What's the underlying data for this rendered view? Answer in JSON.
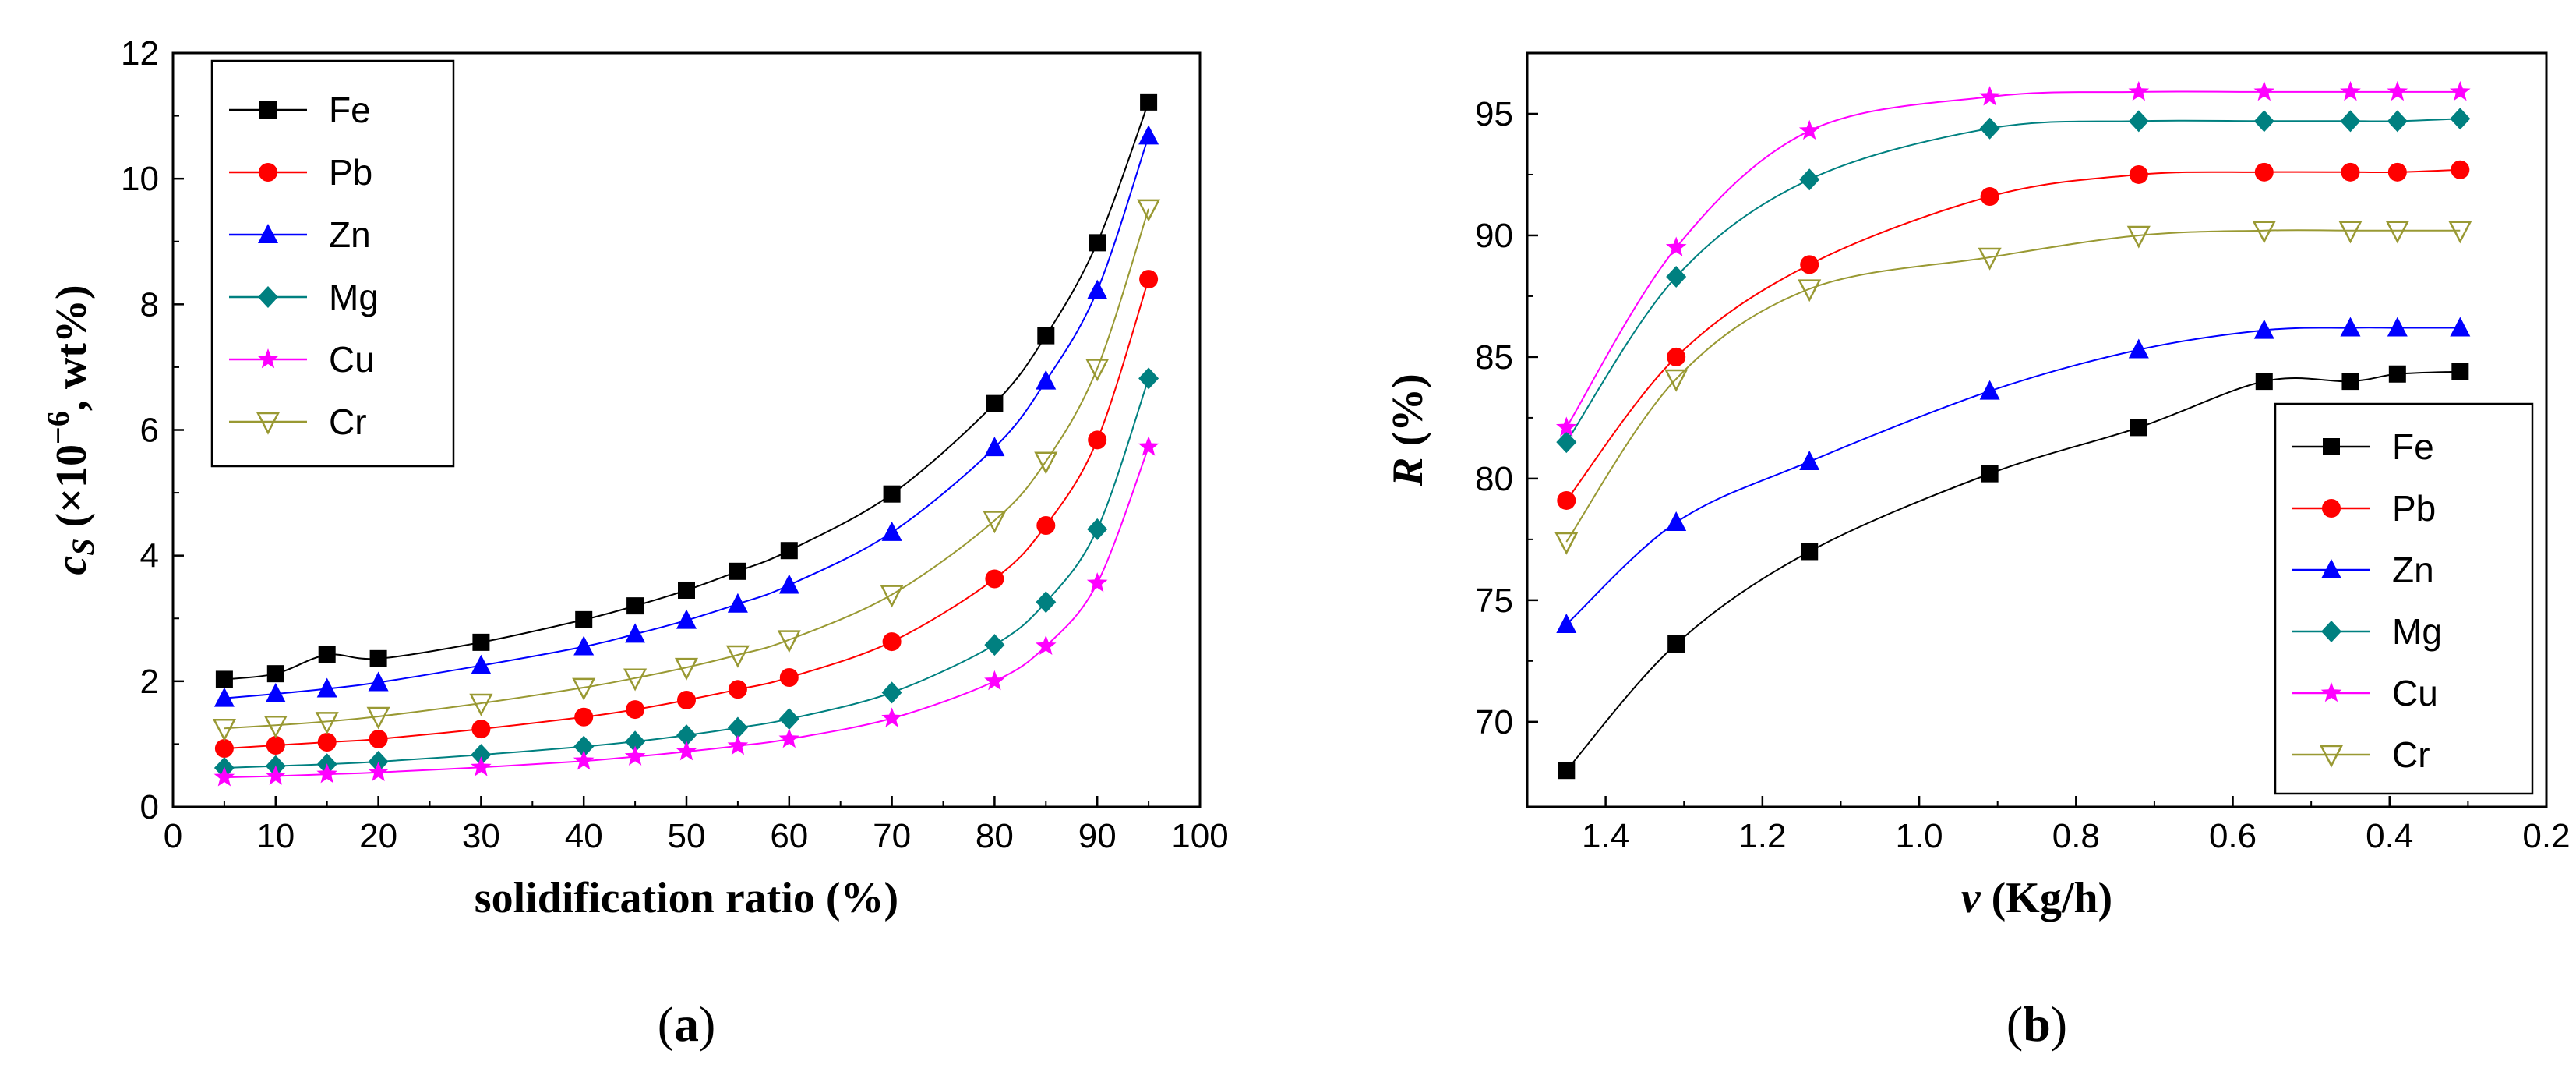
{
  "chart_data": [
    {
      "type": "line",
      "panel_label": "(a)",
      "xlabel": "solidification ratio (%)",
      "ylabel": {
        "prefix": "c",
        "sub": "S",
        "open": " (×10",
        "sup": "−6",
        "close": ", wt%)"
      },
      "xlim": [
        0,
        100
      ],
      "ylim": [
        0,
        12
      ],
      "xticks": [
        "0",
        "10",
        "20",
        "30",
        "40",
        "50",
        "60",
        "70",
        "80",
        "90",
        "100"
      ],
      "yticks": [
        "0",
        "2",
        "4",
        "6",
        "8",
        "10",
        "12"
      ],
      "legend_position": "top-left",
      "x": [
        5,
        10,
        15,
        20,
        30,
        40,
        45,
        50,
        55,
        60,
        70,
        80,
        85,
        90,
        95
      ],
      "series": [
        {
          "name": "Fe",
          "marker": "square",
          "color": "#000000",
          "values": [
            2.03,
            2.12,
            2.42,
            2.36,
            2.62,
            2.98,
            3.2,
            3.45,
            3.75,
            4.08,
            4.98,
            6.42,
            7.5,
            8.98,
            11.22
          ]
        },
        {
          "name": "Pb",
          "marker": "circle",
          "color": "#ff0000",
          "values": [
            0.93,
            0.98,
            1.03,
            1.08,
            1.24,
            1.43,
            1.55,
            1.7,
            1.87,
            2.06,
            2.63,
            3.63,
            4.48,
            5.84,
            8.4
          ]
        },
        {
          "name": "Zn",
          "marker": "triangle",
          "color": "#0000ff",
          "values": [
            1.73,
            1.8,
            1.88,
            1.98,
            2.25,
            2.55,
            2.75,
            2.97,
            3.23,
            3.53,
            4.37,
            5.72,
            6.78,
            8.22,
            10.68
          ]
        },
        {
          "name": "Mg",
          "marker": "diamond",
          "color": "#008080",
          "values": [
            0.62,
            0.65,
            0.68,
            0.72,
            0.83,
            0.96,
            1.04,
            1.14,
            1.26,
            1.4,
            1.82,
            2.58,
            3.26,
            4.42,
            6.82
          ]
        },
        {
          "name": "Cu",
          "marker": "star",
          "color": "#ff00ff",
          "values": [
            0.47,
            0.49,
            0.52,
            0.55,
            0.63,
            0.73,
            0.8,
            0.88,
            0.97,
            1.08,
            1.41,
            2.0,
            2.56,
            3.56,
            5.73
          ]
        },
        {
          "name": "Cr",
          "marker": "tri-down",
          "color": "#999933",
          "values": [
            1.25,
            1.3,
            1.36,
            1.44,
            1.65,
            1.9,
            2.05,
            2.22,
            2.42,
            2.66,
            3.38,
            4.56,
            5.5,
            6.98,
            9.52
          ]
        }
      ]
    },
    {
      "type": "line",
      "panel_label": "(b)",
      "xlabel": {
        "var": "v",
        "rest": " (Kg/h)"
      },
      "ylabel": {
        "var": "R",
        "rest": " (%)"
      },
      "xlim": [
        1.5,
        0.2
      ],
      "ylim": [
        66.5,
        97.5
      ],
      "xticks": [
        "1.4",
        "1.2",
        "1.0",
        "0.8",
        "0.6",
        "0.4",
        "0.2"
      ],
      "yticks": [
        "70",
        "75",
        "80",
        "85",
        "90",
        "95"
      ],
      "legend_position": "bottom-right",
      "x": [
        1.45,
        1.31,
        1.14,
        0.91,
        0.72,
        0.56,
        0.45,
        0.39,
        0.31
      ],
      "series": [
        {
          "name": "Fe",
          "marker": "square",
          "color": "#000000",
          "values": [
            68.0,
            73.2,
            77.0,
            80.2,
            82.1,
            84.0,
            84.0,
            84.3,
            84.4
          ]
        },
        {
          "name": "Pb",
          "marker": "circle",
          "color": "#ff0000",
          "values": [
            79.1,
            85.0,
            88.8,
            91.6,
            92.5,
            92.6,
            92.6,
            92.6,
            92.7
          ]
        },
        {
          "name": "Zn",
          "marker": "triangle",
          "color": "#0000ff",
          "values": [
            74.0,
            78.2,
            80.7,
            83.6,
            85.3,
            86.1,
            86.2,
            86.2,
            86.2
          ]
        },
        {
          "name": "Mg",
          "marker": "diamond",
          "color": "#008080",
          "values": [
            81.5,
            88.3,
            92.3,
            94.4,
            94.7,
            94.7,
            94.7,
            94.7,
            94.8
          ]
        },
        {
          "name": "Cu",
          "marker": "star",
          "color": "#ff00ff",
          "values": [
            82.1,
            89.5,
            94.3,
            95.7,
            95.9,
            95.9,
            95.9,
            95.9,
            95.9
          ]
        },
        {
          "name": "Cr",
          "marker": "tri-down",
          "color": "#999933",
          "values": [
            77.4,
            84.1,
            87.8,
            89.1,
            90.0,
            90.2,
            90.2,
            90.2,
            90.2
          ]
        }
      ]
    }
  ]
}
